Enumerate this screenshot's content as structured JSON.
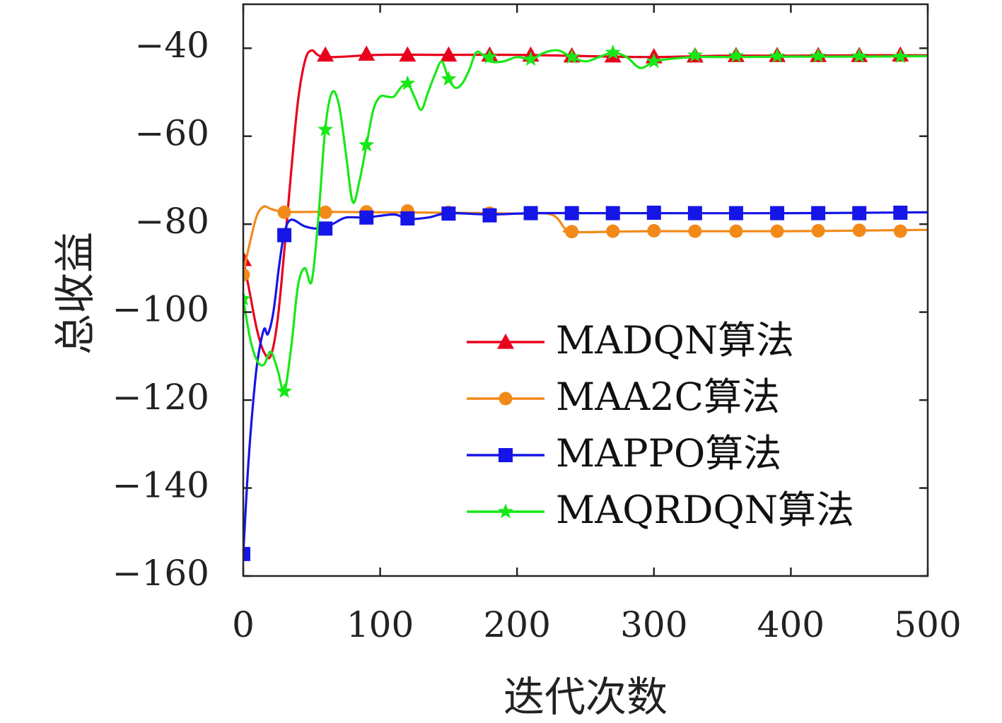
{
  "chart_data": {
    "type": "line",
    "title": "",
    "xlabel": "迭代次数",
    "ylabel": "总收益",
    "xlim": [
      0,
      500
    ],
    "ylim": [
      -160,
      -30
    ],
    "xticks": [
      0,
      100,
      200,
      300,
      400,
      500
    ],
    "xtick_labels": [
      "0",
      "100",
      "200",
      "300",
      "400",
      "500"
    ],
    "yticks": [
      -40,
      -60,
      -80,
      -100,
      -120,
      -140,
      -160
    ],
    "ytick_labels": [
      "−40",
      "−60",
      "−80",
      "−100",
      "−120",
      "−140",
      "−160"
    ],
    "grid": false,
    "legend_position": "bottom-right",
    "series": [
      {
        "name": "MADQN算法",
        "color": "#e8001c",
        "marker": "triangle",
        "line": [
          [
            0,
            -88
          ],
          [
            5,
            -96
          ],
          [
            10,
            -104
          ],
          [
            15,
            -109
          ],
          [
            20,
            -110
          ],
          [
            25,
            -102
          ],
          [
            30,
            -86
          ],
          [
            35,
            -68
          ],
          [
            40,
            -52
          ],
          [
            45,
            -43
          ],
          [
            50,
            -40.5
          ],
          [
            60,
            -42
          ],
          [
            100,
            -41.5
          ],
          [
            150,
            -41.5
          ],
          [
            200,
            -41.5
          ],
          [
            250,
            -41.8
          ],
          [
            300,
            -42
          ],
          [
            350,
            -41.7
          ],
          [
            400,
            -41.7
          ],
          [
            450,
            -41.6
          ],
          [
            500,
            -41.6
          ]
        ],
        "markers": [
          [
            0,
            -88
          ],
          [
            60,
            -41.5
          ],
          [
            90,
            -41.3
          ],
          [
            120,
            -41.5
          ],
          [
            150,
            -41.5
          ],
          [
            180,
            -41.5
          ],
          [
            210,
            -41.5
          ],
          [
            240,
            -41.7
          ],
          [
            270,
            -41.7
          ],
          [
            300,
            -41.9
          ],
          [
            330,
            -41.7
          ],
          [
            360,
            -41.6
          ],
          [
            390,
            -41.6
          ],
          [
            420,
            -41.6
          ],
          [
            450,
            -41.6
          ],
          [
            480,
            -41.5
          ]
        ]
      },
      {
        "name": "MAA2C算法",
        "color": "#f28a1a",
        "marker": "circle",
        "line": [
          [
            0,
            -91
          ],
          [
            5,
            -84
          ],
          [
            10,
            -78
          ],
          [
            15,
            -76
          ],
          [
            20,
            -76.5
          ],
          [
            30,
            -77.2
          ],
          [
            60,
            -77.2
          ],
          [
            100,
            -77.3
          ],
          [
            150,
            -77.4
          ],
          [
            200,
            -77.6
          ],
          [
            225,
            -77.8
          ],
          [
            235,
            -81
          ],
          [
            240,
            -81.8
          ],
          [
            300,
            -81.6
          ],
          [
            400,
            -81.6
          ],
          [
            500,
            -81.3
          ]
        ],
        "markers": [
          [
            0,
            -91.5
          ],
          [
            30,
            -77.3
          ],
          [
            60,
            -77.3
          ],
          [
            90,
            -77.2
          ],
          [
            120,
            -77
          ],
          [
            150,
            -77.3
          ],
          [
            180,
            -77.5
          ],
          [
            210,
            -77.6
          ],
          [
            240,
            -81.7
          ],
          [
            270,
            -81.6
          ],
          [
            300,
            -81.5
          ],
          [
            330,
            -81.6
          ],
          [
            360,
            -81.6
          ],
          [
            390,
            -81.6
          ],
          [
            420,
            -81.5
          ],
          [
            450,
            -81.4
          ],
          [
            480,
            -81.6
          ]
        ]
      },
      {
        "name": "MAPPO算法",
        "color": "#1515e8",
        "marker": "square",
        "line": [
          [
            0,
            -155
          ],
          [
            3,
            -138
          ],
          [
            6,
            -125
          ],
          [
            10,
            -112
          ],
          [
            15,
            -104
          ],
          [
            18,
            -105
          ],
          [
            22,
            -100
          ],
          [
            26,
            -90
          ],
          [
            30,
            -82
          ],
          [
            35,
            -79
          ],
          [
            45,
            -80.5
          ],
          [
            55,
            -81
          ],
          [
            65,
            -80
          ],
          [
            75,
            -78.5
          ],
          [
            90,
            -78.5
          ],
          [
            110,
            -77.8
          ],
          [
            120,
            -78.8
          ],
          [
            135,
            -78.5
          ],
          [
            150,
            -77.5
          ],
          [
            180,
            -77.8
          ],
          [
            210,
            -77.5
          ],
          [
            250,
            -77.5
          ],
          [
            300,
            -77.5
          ],
          [
            400,
            -77.5
          ],
          [
            500,
            -77.3
          ]
        ],
        "markers": [
          [
            0,
            -155
          ],
          [
            30,
            -82.5
          ],
          [
            60,
            -81
          ],
          [
            90,
            -78.5
          ],
          [
            120,
            -78.7
          ],
          [
            150,
            -77.6
          ],
          [
            180,
            -78
          ],
          [
            210,
            -77.5
          ],
          [
            240,
            -77.5
          ],
          [
            270,
            -77.5
          ],
          [
            300,
            -77.4
          ],
          [
            330,
            -77.5
          ],
          [
            360,
            -77.5
          ],
          [
            390,
            -77.5
          ],
          [
            420,
            -77.5
          ],
          [
            450,
            -77.5
          ],
          [
            480,
            -77.4
          ]
        ]
      },
      {
        "name": "MAQRDQN算法",
        "color": "#18e818",
        "marker": "star",
        "line": [
          [
            0,
            -97
          ],
          [
            5,
            -106
          ],
          [
            10,
            -111
          ],
          [
            15,
            -112
          ],
          [
            20,
            -109
          ],
          [
            25,
            -113
          ],
          [
            30,
            -118
          ],
          [
            35,
            -108
          ],
          [
            40,
            -94
          ],
          [
            45,
            -90
          ],
          [
            50,
            -93
          ],
          [
            55,
            -78
          ],
          [
            60,
            -58
          ],
          [
            65,
            -50
          ],
          [
            70,
            -53
          ],
          [
            75,
            -64
          ],
          [
            80,
            -75
          ],
          [
            85,
            -70
          ],
          [
            90,
            -62
          ],
          [
            95,
            -54
          ],
          [
            100,
            -51
          ],
          [
            105,
            -51
          ],
          [
            110,
            -51
          ],
          [
            115,
            -49
          ],
          [
            120,
            -48
          ],
          [
            125,
            -51
          ],
          [
            130,
            -54
          ],
          [
            135,
            -50
          ],
          [
            140,
            -46
          ],
          [
            145,
            -43
          ],
          [
            150,
            -47
          ],
          [
            155,
            -49
          ],
          [
            160,
            -48
          ],
          [
            165,
            -45
          ],
          [
            170,
            -41
          ],
          [
            175,
            -41.5
          ],
          [
            180,
            -43
          ],
          [
            190,
            -43
          ],
          [
            200,
            -42
          ],
          [
            210,
            -42.5
          ],
          [
            220,
            -41
          ],
          [
            230,
            -40.5
          ],
          [
            240,
            -42
          ],
          [
            250,
            -43
          ],
          [
            260,
            -42
          ],
          [
            270,
            -41
          ],
          [
            280,
            -42
          ],
          [
            290,
            -44.5
          ],
          [
            300,
            -43
          ],
          [
            310,
            -42.5
          ],
          [
            330,
            -42
          ],
          [
            360,
            -42
          ],
          [
            400,
            -41.9
          ],
          [
            450,
            -41.9
          ],
          [
            500,
            -41.8
          ]
        ],
        "markers": [
          [
            0,
            -97
          ],
          [
            30,
            -118
          ],
          [
            60,
            -58.5
          ],
          [
            90,
            -62
          ],
          [
            120,
            -48
          ],
          [
            150,
            -47
          ],
          [
            180,
            -42
          ],
          [
            210,
            -42.5
          ],
          [
            240,
            -42
          ],
          [
            270,
            -41
          ],
          [
            300,
            -43
          ],
          [
            330,
            -41.6
          ],
          [
            360,
            -41.7
          ],
          [
            390,
            -41.8
          ],
          [
            420,
            -41.8
          ],
          [
            450,
            -41.8
          ],
          [
            480,
            -41.9
          ]
        ]
      }
    ]
  }
}
